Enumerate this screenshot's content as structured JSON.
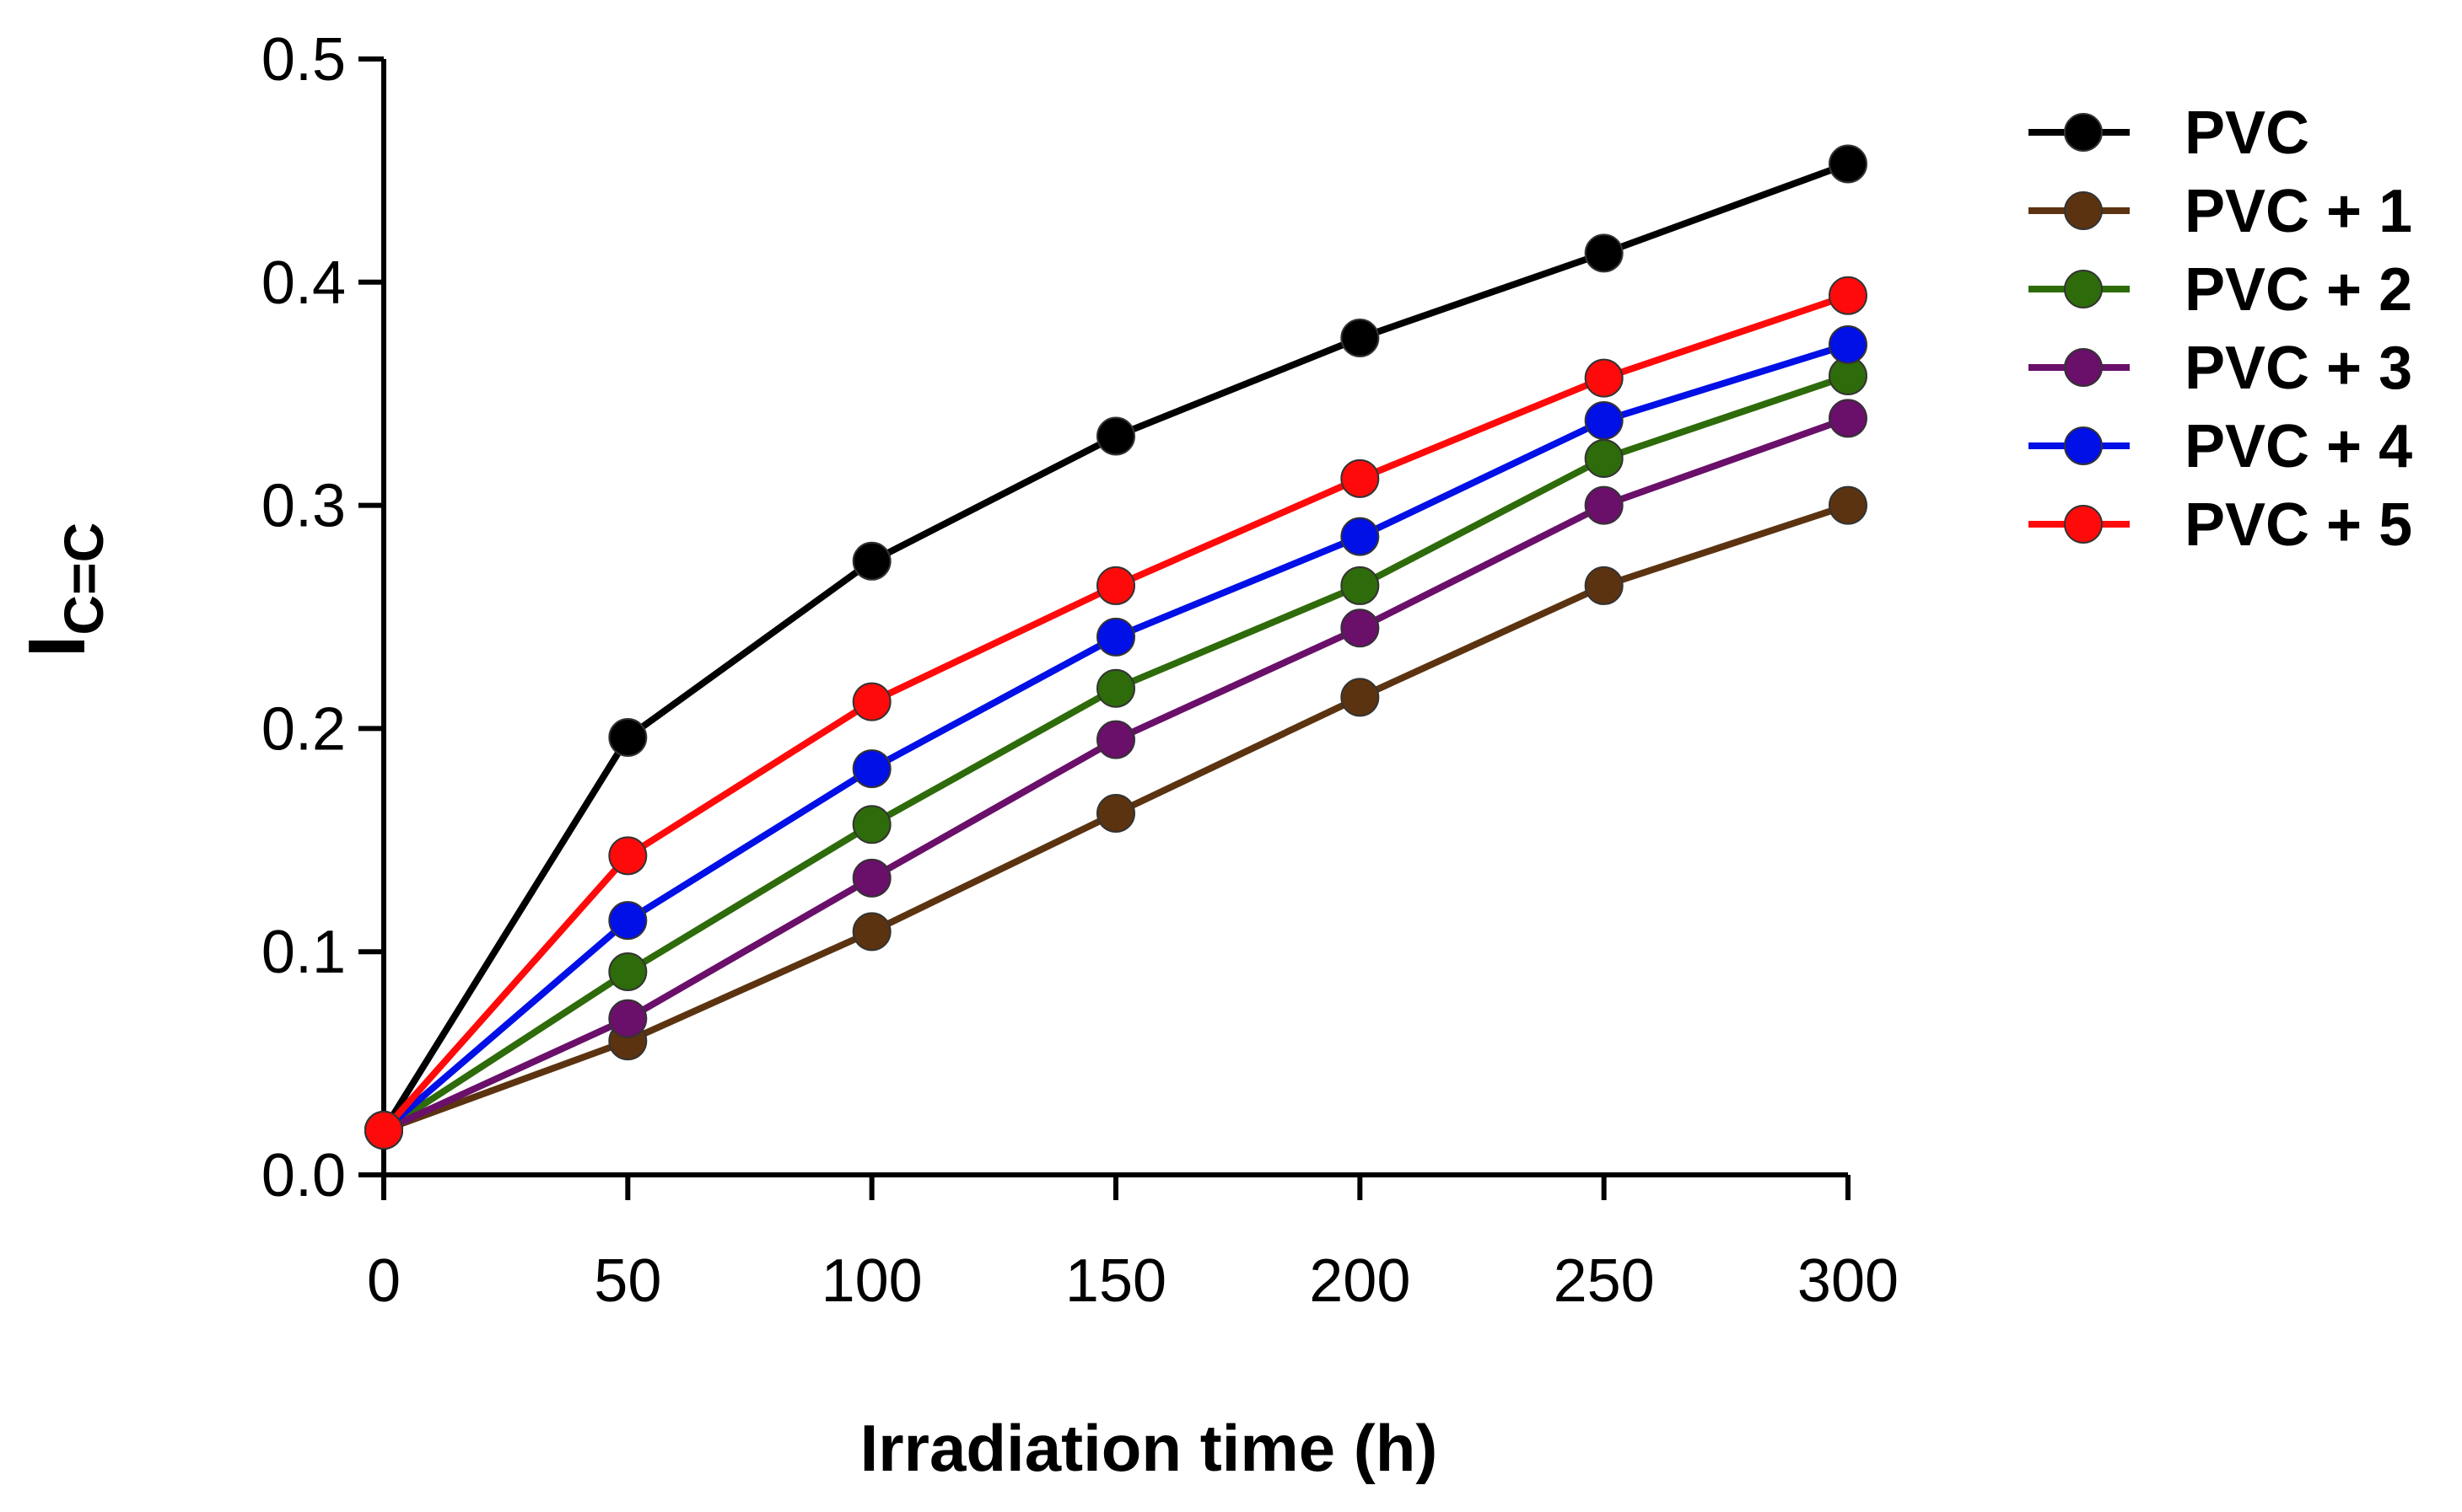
{
  "chart_data": {
    "type": "line",
    "title": "",
    "xlabel": "Irradiation time (h)",
    "ylabel_main": "I",
    "ylabel_sub": "C=C",
    "x": [
      0,
      50,
      100,
      150,
      200,
      250,
      300
    ],
    "xlim": [
      0,
      300
    ],
    "ylim": [
      0,
      0.5
    ],
    "x_tick_labels": [
      "0",
      "50",
      "100",
      "150",
      "200",
      "250",
      "300"
    ],
    "y_tick_labels": [
      "0.0",
      "0.1",
      "0.2",
      "0.3",
      "0.4",
      "0.5"
    ],
    "grid": false,
    "legend_position": "right",
    "series": [
      {
        "name": "PVC",
        "color": "#000000",
        "values": [
          0.02,
          0.196,
          0.275,
          0.331,
          0.375,
          0.413,
          0.453
        ]
      },
      {
        "name": "PVC + 1",
        "color": "#5c3310",
        "values": [
          0.02,
          0.06,
          0.109,
          0.162,
          0.214,
          0.264,
          0.3
        ]
      },
      {
        "name": "PVC + 2",
        "color": "#2e6b0a",
        "values": [
          0.02,
          0.091,
          0.157,
          0.218,
          0.264,
          0.321,
          0.358
        ]
      },
      {
        "name": "PVC + 3",
        "color": "#6a0f6a",
        "values": [
          0.02,
          0.07,
          0.133,
          0.195,
          0.245,
          0.3,
          0.339
        ]
      },
      {
        "name": "PVC + 4",
        "color": "#0010e6",
        "values": [
          0.02,
          0.114,
          0.182,
          0.241,
          0.286,
          0.338,
          0.372
        ]
      },
      {
        "name": "PVC + 5",
        "color": "#ff0a0a",
        "values": [
          0.02,
          0.143,
          0.212,
          0.264,
          0.312,
          0.357,
          0.394
        ]
      }
    ]
  }
}
